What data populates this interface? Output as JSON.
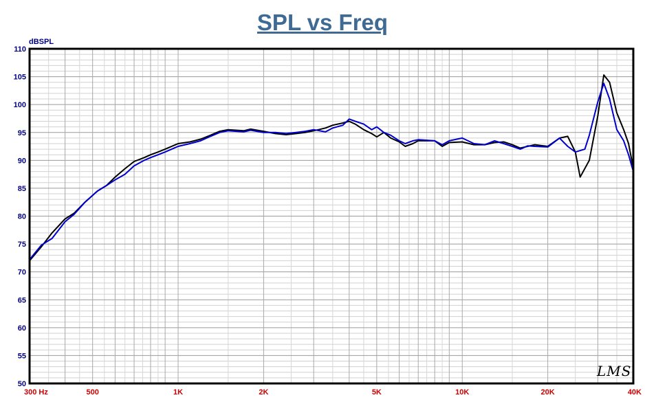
{
  "chart_data": {
    "type": "line",
    "title": "SPL vs Freq",
    "ylabel": "dBSPL",
    "xlabel": "",
    "xscale": "log",
    "xlim": [
      300,
      40000
    ],
    "ylim": [
      50,
      110
    ],
    "grid": true,
    "watermark": "LMS",
    "yticks": [
      "50",
      "55",
      "60",
      "65",
      "70",
      "75",
      "80",
      "85",
      "90",
      "95",
      "100",
      "105",
      "110"
    ],
    "xticks": [
      {
        "label": "300 Hz",
        "value": 300
      },
      {
        "label": "500",
        "value": 500
      },
      {
        "label": "1K",
        "value": 1000
      },
      {
        "label": "2K",
        "value": 2000
      },
      {
        "label": "5K",
        "value": 5000
      },
      {
        "label": "10K",
        "value": 10000
      },
      {
        "label": "20K",
        "value": 20000
      },
      {
        "label": "40K",
        "value": 40000
      }
    ],
    "series": [
      {
        "color": "#000000",
        "points": [
          [
            300,
            72.0
          ],
          [
            330,
            74.5
          ],
          [
            360,
            77.0
          ],
          [
            400,
            79.5
          ],
          [
            430,
            80.5
          ],
          [
            470,
            82.5
          ],
          [
            520,
            84.5
          ],
          [
            560,
            85.5
          ],
          [
            600,
            87.0
          ],
          [
            650,
            88.5
          ],
          [
            700,
            89.8
          ],
          [
            760,
            90.5
          ],
          [
            800,
            91.0
          ],
          [
            850,
            91.5
          ],
          [
            900,
            92.0
          ],
          [
            1000,
            93.0
          ],
          [
            1100,
            93.3
          ],
          [
            1200,
            93.8
          ],
          [
            1300,
            94.5
          ],
          [
            1400,
            95.2
          ],
          [
            1500,
            95.5
          ],
          [
            1700,
            95.3
          ],
          [
            1800,
            95.6
          ],
          [
            2000,
            95.2
          ],
          [
            2200,
            94.8
          ],
          [
            2400,
            94.6
          ],
          [
            2600,
            94.8
          ],
          [
            2800,
            95.0
          ],
          [
            3000,
            95.3
          ],
          [
            3300,
            95.8
          ],
          [
            3500,
            96.3
          ],
          [
            3800,
            96.7
          ],
          [
            4000,
            97.0
          ],
          [
            4200,
            96.5
          ],
          [
            4500,
            95.5
          ],
          [
            4800,
            94.8
          ],
          [
            5000,
            94.2
          ],
          [
            5300,
            95.0
          ],
          [
            5600,
            94.0
          ],
          [
            6000,
            93.3
          ],
          [
            6300,
            92.5
          ],
          [
            6700,
            93.0
          ],
          [
            7000,
            93.5
          ],
          [
            8000,
            93.5
          ],
          [
            8500,
            92.5
          ],
          [
            9000,
            93.2
          ],
          [
            10000,
            93.3
          ],
          [
            11000,
            92.8
          ],
          [
            12000,
            92.8
          ],
          [
            13000,
            93.2
          ],
          [
            14000,
            93.3
          ],
          [
            15000,
            92.8
          ],
          [
            16000,
            92.2
          ],
          [
            17000,
            92.5
          ],
          [
            18000,
            92.8
          ],
          [
            20000,
            92.5
          ],
          [
            22000,
            94.0
          ],
          [
            23500,
            94.3
          ],
          [
            25000,
            91.5
          ],
          [
            26000,
            87.0
          ],
          [
            28000,
            90.0
          ],
          [
            30000,
            98.0
          ],
          [
            31500,
            105.3
          ],
          [
            33000,
            104.0
          ],
          [
            35000,
            98.5
          ],
          [
            37000,
            95.5
          ],
          [
            38500,
            93.0
          ],
          [
            40000,
            88.5
          ]
        ]
      },
      {
        "color": "#0000CC",
        "points": [
          [
            300,
            72.2
          ],
          [
            330,
            74.8
          ],
          [
            360,
            76.0
          ],
          [
            400,
            79.0
          ],
          [
            430,
            80.3
          ],
          [
            470,
            82.5
          ],
          [
            520,
            84.5
          ],
          [
            560,
            85.5
          ],
          [
            600,
            86.5
          ],
          [
            650,
            87.5
          ],
          [
            700,
            89.0
          ],
          [
            760,
            90.0
          ],
          [
            800,
            90.5
          ],
          [
            850,
            91.0
          ],
          [
            900,
            91.5
          ],
          [
            1000,
            92.5
          ],
          [
            1100,
            93.0
          ],
          [
            1200,
            93.5
          ],
          [
            1300,
            94.3
          ],
          [
            1400,
            95.0
          ],
          [
            1500,
            95.3
          ],
          [
            1700,
            95.1
          ],
          [
            1800,
            95.4
          ],
          [
            2000,
            95.0
          ],
          [
            2200,
            95.0
          ],
          [
            2400,
            94.8
          ],
          [
            2600,
            95.0
          ],
          [
            2800,
            95.2
          ],
          [
            3000,
            95.5
          ],
          [
            3300,
            95.1
          ],
          [
            3500,
            95.8
          ],
          [
            3800,
            96.3
          ],
          [
            4000,
            97.4
          ],
          [
            4200,
            97.0
          ],
          [
            4500,
            96.5
          ],
          [
            4800,
            95.5
          ],
          [
            5000,
            96.0
          ],
          [
            5300,
            95.0
          ],
          [
            5600,
            94.5
          ],
          [
            6000,
            93.5
          ],
          [
            6300,
            93.0
          ],
          [
            6700,
            93.5
          ],
          [
            7000,
            93.7
          ],
          [
            8000,
            93.5
          ],
          [
            8500,
            92.8
          ],
          [
            9000,
            93.5
          ],
          [
            10000,
            94.0
          ],
          [
            11000,
            93.0
          ],
          [
            12000,
            92.8
          ],
          [
            13000,
            93.5
          ],
          [
            14000,
            93.0
          ],
          [
            15000,
            92.5
          ],
          [
            16000,
            92.0
          ],
          [
            17000,
            92.6
          ],
          [
            18000,
            92.5
          ],
          [
            20000,
            92.4
          ],
          [
            22000,
            94.0
          ],
          [
            23500,
            92.5
          ],
          [
            25000,
            91.5
          ],
          [
            27000,
            92.0
          ],
          [
            28000,
            94.5
          ],
          [
            30000,
            100.5
          ],
          [
            31500,
            103.8
          ],
          [
            33000,
            101.0
          ],
          [
            35000,
            95.5
          ],
          [
            37000,
            93.5
          ],
          [
            38500,
            91.0
          ],
          [
            40000,
            88.0
          ]
        ]
      }
    ]
  }
}
